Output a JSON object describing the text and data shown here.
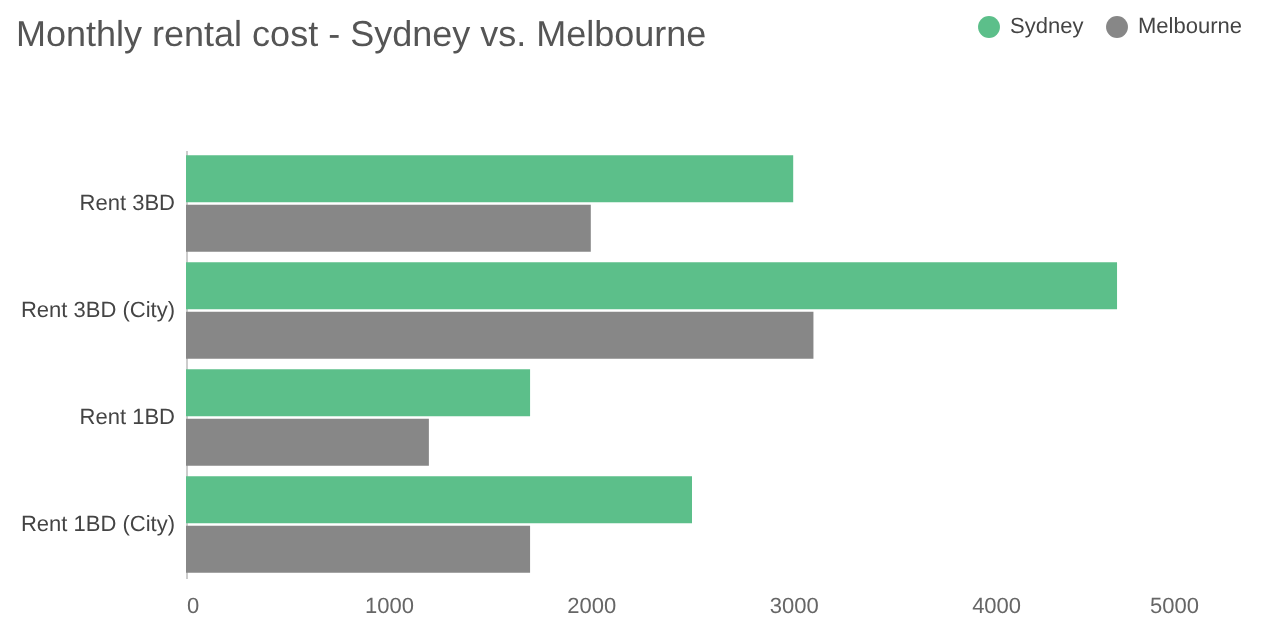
{
  "chart_data": {
    "type": "bar",
    "orientation": "horizontal",
    "title": "Monthly rental cost - Sydney vs. Melbourne",
    "categories": [
      "Rent 3BD",
      "Rent 3BD (City)",
      "Rent 1BD",
      "Rent 1BD (City)"
    ],
    "series": [
      {
        "name": "Sydney",
        "color": "#5cbf8a",
        "values": [
          3000,
          4600,
          1700,
          2500
        ]
      },
      {
        "name": "Melbourne",
        "color": "#878787",
        "values": [
          2000,
          3100,
          1200,
          1700
        ]
      }
    ],
    "xlim": [
      0,
      5000
    ],
    "xticks": [
      0,
      1000,
      2000,
      3000,
      4000,
      5000
    ],
    "legend": "top right"
  }
}
